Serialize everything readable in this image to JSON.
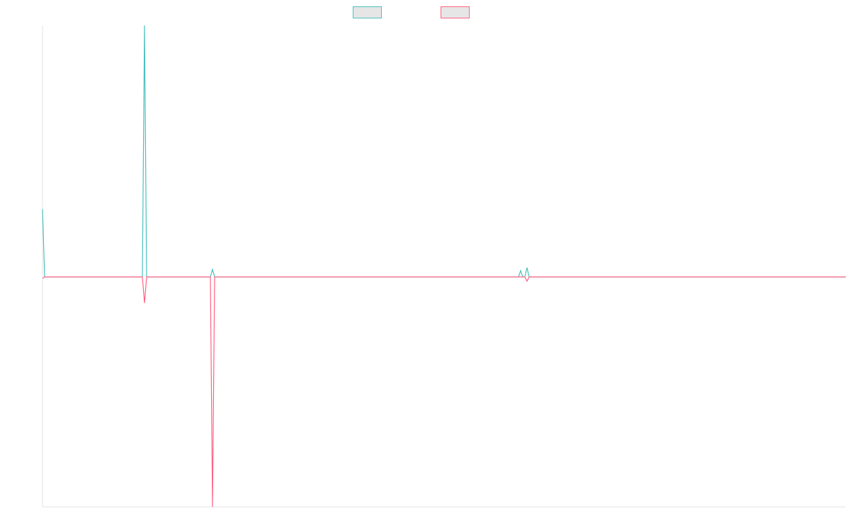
{
  "chart_data": {
    "type": "line",
    "x": [
      0,
      1,
      47,
      48,
      49,
      79,
      80,
      81,
      224,
      225,
      226,
      227,
      228,
      229,
      378
    ],
    "series": [
      {
        "color": "#4bc0c0",
        "values": [
          27,
          0,
          0,
          100,
          0,
          0,
          3,
          0,
          0,
          2.5,
          0,
          0,
          3.7,
          0,
          0
        ]
      },
      {
        "color": "#ff6384",
        "values": [
          -0.6,
          0,
          0,
          -10.4,
          0,
          0,
          -91.5,
          0,
          0,
          0,
          0,
          0,
          -1.7,
          0,
          0
        ]
      }
    ],
    "xlim": [
      0,
      378
    ],
    "ylim": [
      -91.5,
      100
    ],
    "grid": false,
    "legend": "top"
  }
}
